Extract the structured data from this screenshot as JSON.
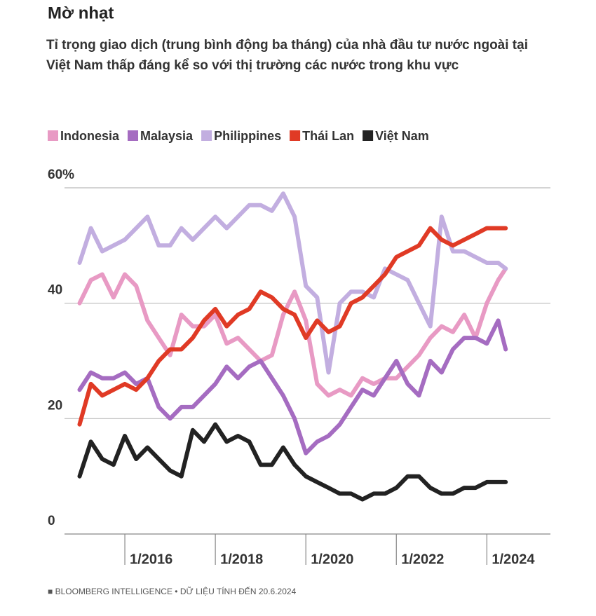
{
  "chart_data": {
    "type": "line",
    "title": "Mờ nhạt",
    "subtitle": "Tỉ trọng giao dịch (trung bình động ba tháng) của nhà đầu tư nước ngoài tại Việt Nam thấp đáng kể so với thị trường các nước trong khu vực",
    "source": "■ BLOOMBERG INTELLIGENCE • DỮ LIỆU TÍNH ĐẾN 20.6.2024",
    "x": [
      "2015-01",
      "2015-04",
      "2015-07",
      "2015-10",
      "2016-01",
      "2016-04",
      "2016-07",
      "2016-10",
      "2017-01",
      "2017-04",
      "2017-07",
      "2017-10",
      "2018-01",
      "2018-04",
      "2018-07",
      "2018-10",
      "2019-01",
      "2019-04",
      "2019-07",
      "2019-10",
      "2020-01",
      "2020-04",
      "2020-07",
      "2020-10",
      "2021-01",
      "2021-04",
      "2021-07",
      "2021-10",
      "2022-01",
      "2022-04",
      "2022-07",
      "2022-10",
      "2023-01",
      "2023-04",
      "2023-07",
      "2023-10",
      "2024-01",
      "2024-04",
      "2024-06"
    ],
    "xlim": [
      "2014-09",
      "2025-04"
    ],
    "xticks": [
      {
        "value": "2016-01",
        "label": "1/2016"
      },
      {
        "value": "2018-01",
        "label": "1/2018"
      },
      {
        "value": "2020-01",
        "label": "1/2020"
      },
      {
        "value": "2022-01",
        "label": "1/2022"
      },
      {
        "value": "2024-01",
        "label": "1/2024"
      }
    ],
    "ylim": [
      0,
      60
    ],
    "yticks": [
      0,
      20,
      40,
      {
        "value": 60,
        "label": "60%"
      }
    ],
    "grid": true,
    "series": [
      {
        "name": "Indonesia",
        "color": "#e89ac4",
        "values": [
          40,
          44,
          45,
          41,
          45,
          43,
          37,
          34,
          31,
          38,
          36,
          36,
          38,
          33,
          34,
          32,
          30,
          31,
          38,
          42,
          37,
          26,
          24,
          25,
          24,
          27,
          26,
          27,
          27,
          29,
          31,
          34,
          36,
          35,
          38,
          34,
          40,
          44,
          46
        ]
      },
      {
        "name": "Malaysia",
        "color": "#a56cc1",
        "values": [
          25,
          28,
          27,
          27,
          28,
          26,
          27,
          22,
          20,
          22,
          22,
          24,
          26,
          29,
          27,
          29,
          30,
          27,
          24,
          20,
          14,
          16,
          17,
          19,
          22,
          25,
          24,
          27,
          30,
          26,
          24,
          30,
          28,
          32,
          34,
          34,
          33,
          37,
          32
        ]
      },
      {
        "name": "Philippines",
        "color": "#c2aee0",
        "values": [
          47,
          53,
          49,
          50,
          51,
          53,
          55,
          50,
          50,
          53,
          51,
          53,
          55,
          53,
          55,
          57,
          57,
          56,
          59,
          55,
          43,
          41,
          28,
          40,
          42,
          42,
          41,
          46,
          45,
          44,
          40,
          36,
          55,
          49,
          49,
          48,
          47,
          47,
          46
        ]
      },
      {
        "name": "Thái Lan",
        "color": "#e03a25",
        "values": [
          19,
          26,
          24,
          25,
          26,
          25,
          27,
          30,
          32,
          32,
          34,
          37,
          39,
          36,
          38,
          39,
          42,
          41,
          39,
          38,
          34,
          37,
          35,
          36,
          40,
          41,
          43,
          45,
          48,
          49,
          50,
          53,
          51,
          50,
          51,
          52,
          53,
          53,
          53
        ]
      },
      {
        "name": "Việt Nam",
        "color": "#222222",
        "values": [
          10,
          16,
          13,
          12,
          17,
          13,
          15,
          13,
          11,
          10,
          18,
          16,
          19,
          16,
          17,
          16,
          12,
          12,
          15,
          12,
          10,
          9,
          8,
          7,
          7,
          6,
          7,
          7,
          8,
          10,
          10,
          8,
          7,
          7,
          8,
          8,
          9,
          9,
          9
        ]
      }
    ]
  }
}
